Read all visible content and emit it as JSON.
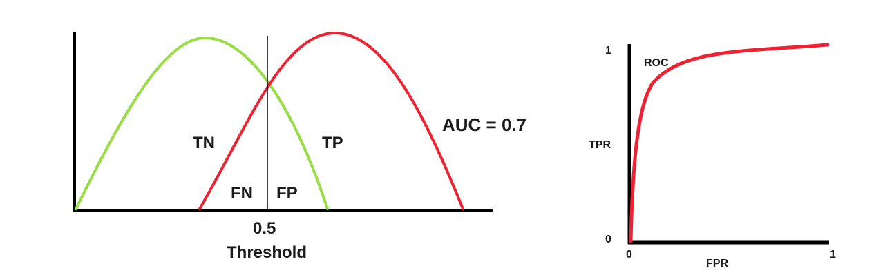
{
  "distribution_diagram": {
    "threshold_value": "0.5",
    "threshold_caption": "Threshold",
    "regions": {
      "tn": "TN",
      "tp": "TP",
      "fn": "FN",
      "fp": "FP"
    },
    "auc_label": "AUC = 0.7",
    "colors": {
      "negative_curve": "#99dd44",
      "positive_curve": "#ee2233",
      "axis": "#000000"
    }
  },
  "roc_diagram": {
    "curve_label": "ROC",
    "y_axis_label": "TPR",
    "x_axis_label": "FPR",
    "y_tick_top": "1",
    "y_tick_bottom": "0",
    "x_tick_left": "0",
    "x_tick_right": "1",
    "colors": {
      "curve": "#ee2233",
      "axis": "#000000"
    }
  }
}
